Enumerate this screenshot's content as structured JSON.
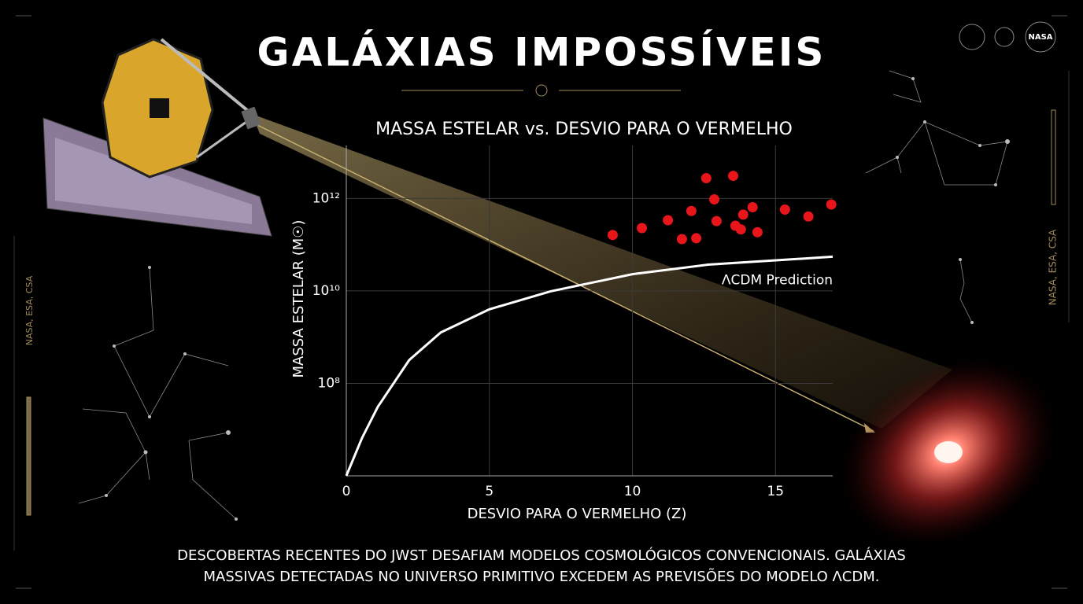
{
  "header": {
    "title": "GALÁXIAS IMPOSSÍVEIS"
  },
  "chart_data": {
    "type": "scatter",
    "title": "MASSA ESTELAR vs. DESVIO PARA O VERMELHO",
    "x_label": "DESVIO PARA O VERMELHO (Z)",
    "y_label": "MASSA ESTELAR (M☉)",
    "xlim": [
      0,
      17
    ],
    "xticks": [
      0,
      5,
      10,
      15
    ],
    "ylim": [
      1000000,
      14000000000000
    ],
    "y_scale": "log",
    "yticks": [
      {
        "value": 100000000,
        "label": "10⁸"
      },
      {
        "value": 10000000000,
        "label": "10¹⁰"
      },
      {
        "value": 1000000000000,
        "label": "10¹²"
      }
    ],
    "grid": true,
    "series": [
      {
        "name": "ΛCDM Prediction",
        "type": "line",
        "color": "#ffffff",
        "x": [
          0,
          0.55,
          1.1,
          2.2,
          3.3,
          5,
          7.14,
          10,
          12.64,
          17
        ],
        "values": [
          1000000,
          6600000,
          31000000,
          320000000,
          1260000000,
          4000000000,
          9800000000,
          23000000000,
          37000000000,
          55000000000
        ]
      },
      {
        "type": "scatter",
        "color": "#e8151b",
        "x": [
          9.31,
          10.33,
          11.24,
          11.73,
          12.06,
          12.23,
          12.58,
          12.86,
          12.94,
          13.52,
          13.6,
          13.79,
          13.87,
          14.2,
          14.37,
          15.33,
          16.15,
          16.95
        ],
        "values": [
          162000000000,
          229000000000,
          339000000000,
          132000000000,
          537000000000,
          138000000000,
          2750000000000,
          955000000000,
          324000000000,
          3090000000000,
          257000000000,
          214000000000,
          447000000000,
          646000000000,
          186000000000,
          575000000000,
          407000000000,
          741000000000
        ]
      }
    ]
  },
  "caption": [
    "DESCOBERTAS RECENTES DO JWST DESAFIAM MODELOS COSMOLÓGICOS CONVENCIONAIS. GALÁXIAS",
    "MASSIVAS DETECTADAS NO UNIVERSO PRIMITIVO EXCEDEM AS PREVISÕES DO MODELO ΛCDM."
  ],
  "credits": {
    "left": "NASA, ESA, CSA",
    "right": "NASA, ESA, CSA"
  },
  "logo": "NASA"
}
